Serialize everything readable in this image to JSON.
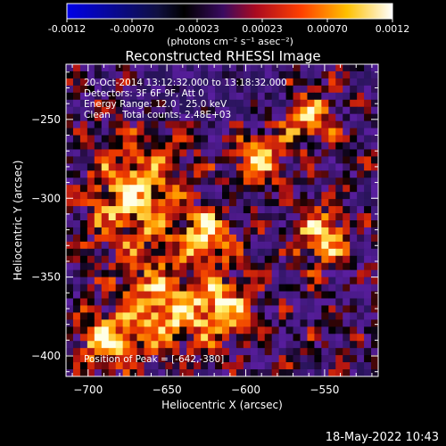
{
  "colorbar": {
    "tick_labels": [
      "-0.0012",
      "-0.00070",
      "-0.00023",
      "0.00023",
      "0.00070",
      "0.0012"
    ],
    "unit_label": "(photons cm⁻² s⁻¹ asec⁻²)",
    "range": [
      -0.0012,
      0.0012
    ]
  },
  "chart_data": {
    "type": "heatmap",
    "title": "Reconstructed RHESSI Image",
    "xlabel": "Heliocentric X (arcsec)",
    "ylabel": "Heliocentric Y (arcsec)",
    "xlim": [
      -714,
      -516
    ],
    "ylim": [
      -413,
      -215
    ],
    "x_ticks": [
      -700,
      -650,
      -600,
      -550
    ],
    "y_ticks": [
      -250,
      -300,
      -350,
      -400
    ],
    "x_tick_labels": [
      "−700",
      "−650",
      "−600",
      "−550"
    ],
    "y_tick_labels": [
      "−250",
      "−300",
      "−350",
      "−400"
    ],
    "grid": false,
    "annotations": {
      "line1": "20-Oct-2014 13:12:32.000 to 13:18:32.000",
      "line2": "Detectors: 3F 6F 9F, Att 0",
      "line3": "Energy Range: 12.0 - 25.0 keV",
      "line4": "Clean    Total counts: 2.48E+03",
      "peak": "Position of Peak = [-642,-380]"
    },
    "peak_position": [
      -642,
      -380
    ],
    "colormap": [
      "#1010e0",
      "#000000",
      "#5a1a8c",
      "#cc1010",
      "#ff7a00",
      "#ffff90",
      "#ffffff"
    ],
    "background_color": "#000000"
  },
  "footer": {
    "timestamp": "18-May-2022 10:43"
  }
}
